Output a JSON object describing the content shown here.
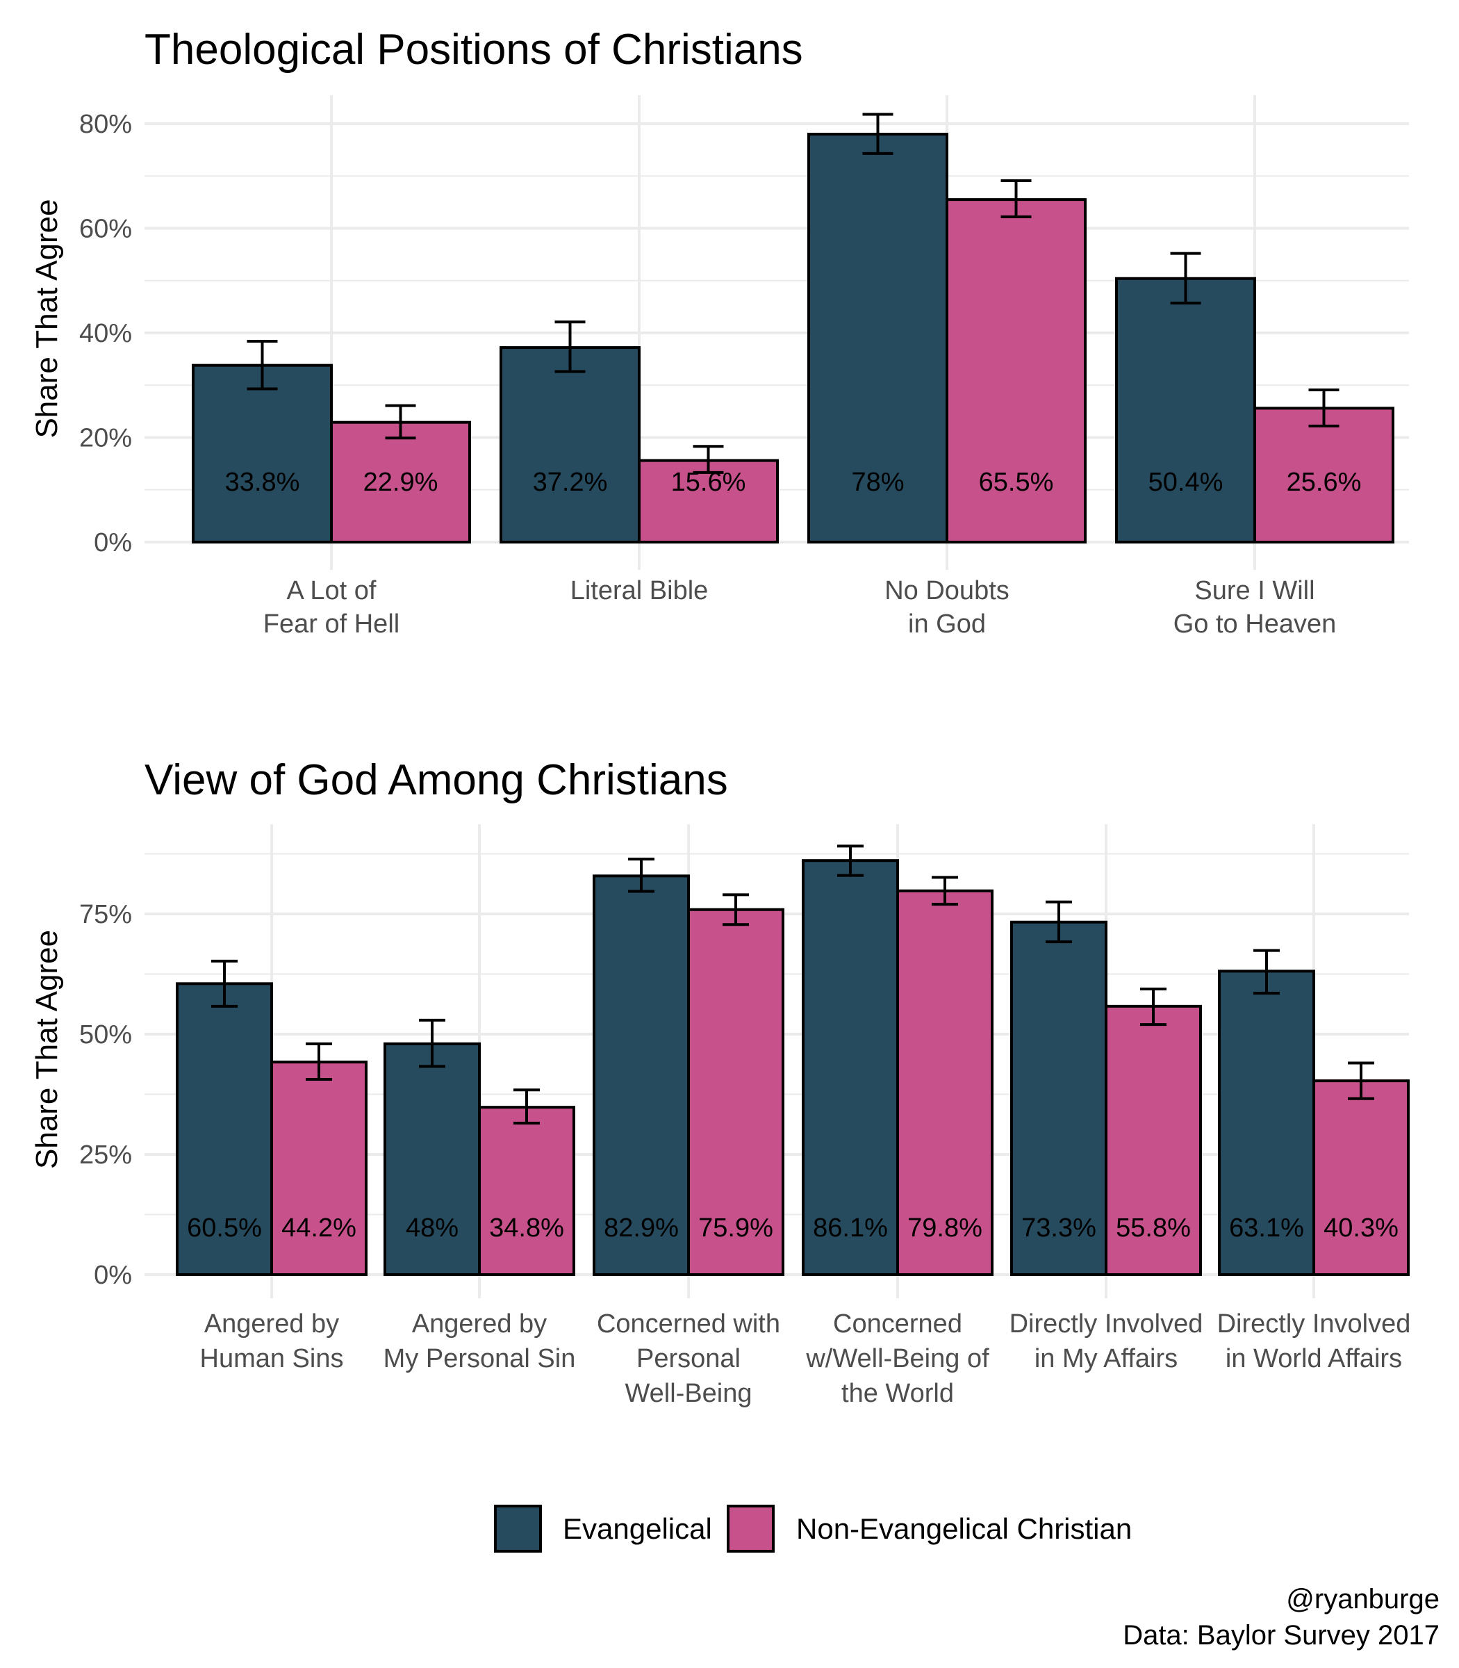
{
  "colors": {
    "evangelical": "#264b5e",
    "non_evangelical": "#c7528b",
    "grid": "#ebebeb",
    "outline": "#000000"
  },
  "legend": {
    "items": [
      {
        "label": "Evangelical",
        "color_key": "evangelical"
      },
      {
        "label": "Non-Evangelical Christian",
        "color_key": "non_evangelical"
      }
    ],
    "position": "bottom"
  },
  "caption": {
    "line1": "@ryanburge",
    "line2": "Data: Baylor Survey 2017"
  },
  "chart_data": [
    {
      "type": "bar",
      "title": "Theological Positions of Christians",
      "xlabel": "",
      "ylabel": "Share That Agree",
      "ylim": [
        0,
        85
      ],
      "yticks": [
        0,
        20,
        40,
        60,
        80
      ],
      "ytick_labels": [
        "0%",
        "20%",
        "40%",
        "60%",
        "80%"
      ],
      "grid": true,
      "categories": [
        [
          "A Lot of",
          "Fear of Hell"
        ],
        [
          "Literal Bible"
        ],
        [
          "No Doubts",
          "in God"
        ],
        [
          "Sure I Will",
          "Go to Heaven"
        ]
      ],
      "series": [
        {
          "name": "Evangelical",
          "values": [
            33.8,
            37.2,
            78,
            50.4
          ],
          "labels": [
            "33.8%",
            "37.2%",
            "78%",
            "50.4%"
          ],
          "ci_low": [
            29.3,
            32.6,
            74.3,
            45.7
          ],
          "ci_high": [
            38.4,
            42.1,
            81.8,
            55.2
          ]
        },
        {
          "name": "Non-Evangelical Christian",
          "values": [
            22.9,
            15.6,
            65.5,
            25.6
          ],
          "labels": [
            "22.9%",
            "15.6%",
            "65.5%",
            "25.6%"
          ],
          "ci_low": [
            19.9,
            13.3,
            62.2,
            22.2
          ],
          "ci_high": [
            26.1,
            18.3,
            69.1,
            29.1
          ]
        }
      ]
    },
    {
      "type": "bar",
      "title": "View of God Among Christians",
      "xlabel": "",
      "ylabel": "Share That Agree",
      "ylim": [
        0,
        93
      ],
      "yticks": [
        0,
        25,
        50,
        75
      ],
      "ytick_labels": [
        "0%",
        "25%",
        "50%",
        "75%"
      ],
      "grid": true,
      "categories": [
        [
          "Angered by",
          "Human Sins"
        ],
        [
          "Angered by",
          "My Personal Sin"
        ],
        [
          "Concerned with",
          "Personal",
          "Well-Being"
        ],
        [
          "Concerned",
          "w/Well-Being of",
          "the World"
        ],
        [
          "Directly Involved",
          "in My Affairs"
        ],
        [
          "Directly Involved",
          "in World Affairs"
        ]
      ],
      "series": [
        {
          "name": "Evangelical",
          "values": [
            60.5,
            48,
            82.9,
            86.1,
            73.3,
            63.1
          ],
          "labels": [
            "60.5%",
            "48%",
            "82.9%",
            "86.1%",
            "73.3%",
            "63.1%"
          ],
          "ci_low": [
            55.8,
            43.3,
            79.7,
            83.0,
            69.2,
            58.5
          ],
          "ci_high": [
            65.2,
            52.9,
            86.4,
            89.1,
            77.5,
            67.4
          ]
        },
        {
          "name": "Non-Evangelical Christian",
          "values": [
            44.2,
            34.8,
            75.9,
            79.8,
            55.8,
            40.3
          ],
          "labels": [
            "44.2%",
            "34.8%",
            "75.9%",
            "79.8%",
            "55.8%",
            "40.3%"
          ],
          "ci_low": [
            40.6,
            31.5,
            72.8,
            77.0,
            52.0,
            36.6
          ],
          "ci_high": [
            48.0,
            38.4,
            79.0,
            82.6,
            59.4,
            44.0
          ]
        }
      ]
    }
  ]
}
